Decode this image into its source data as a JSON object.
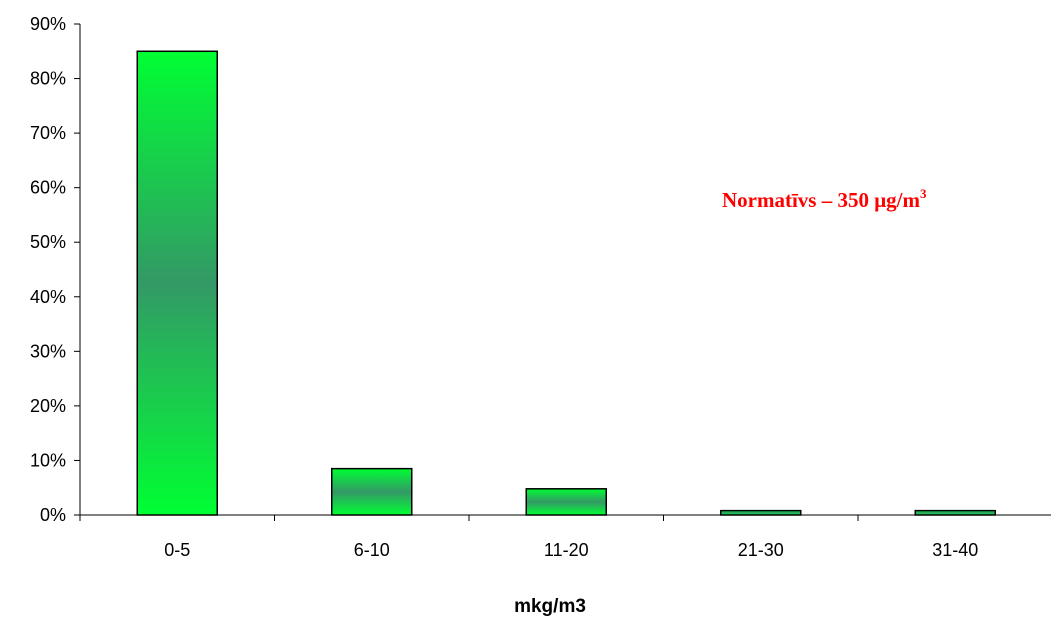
{
  "chart_data": {
    "type": "bar",
    "categories": [
      "0-5",
      "6-10",
      "11-20",
      "21-30",
      "31-40"
    ],
    "values": [
      85,
      8.5,
      4.8,
      0.8,
      0.8
    ],
    "ylim": [
      0,
      90
    ],
    "ytick_step": 10,
    "ytick_labels": [
      "0%",
      "10%",
      "20%",
      "30%",
      "40%",
      "50%",
      "60%",
      "70%",
      "80%",
      "90%"
    ],
    "title": "",
    "xlabel": "mkg/m3",
    "ylabel": "",
    "grid": false,
    "legend": "none",
    "annotation": {
      "text": "Normatīvs – 350 μg/m",
      "superscript": "3",
      "color": "#ff0000",
      "placement": "right-middle"
    },
    "bar_color_edge": "#00ff33",
    "bar_color_center": "#339966",
    "bar_outline": "#000000"
  }
}
